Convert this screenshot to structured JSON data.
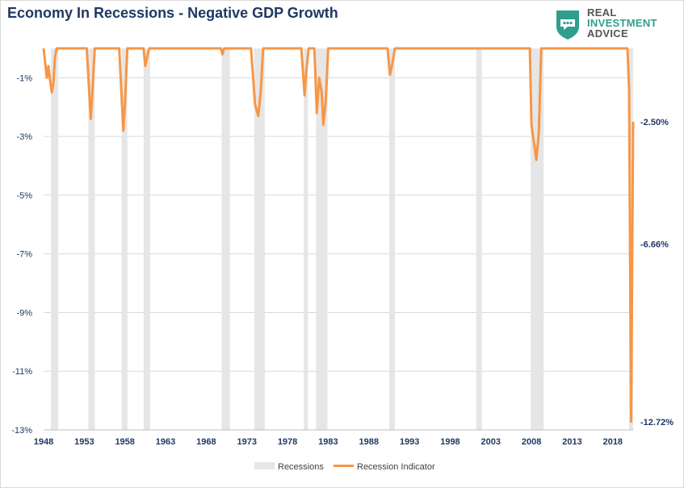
{
  "title": "Economy In Recessions - Negative GDP Growth",
  "logo": {
    "line1": "REAL",
    "line2": "INVESTMENT",
    "line3": "ADVICE",
    "accent": "#2e9e8f"
  },
  "colors": {
    "recession_band": "#e6e6e6",
    "line": "#f79646",
    "gridline": "#d9d9d9",
    "axis_text": "#1f3864"
  },
  "chart_data": {
    "type": "line",
    "title": "Economy In Recessions - Negative GDP Growth",
    "xlabel": "",
    "ylabel": "",
    "x_ticks": [
      "1948",
      "1953",
      "1958",
      "1963",
      "1968",
      "1973",
      "1978",
      "1983",
      "1988",
      "1993",
      "1998",
      "2003",
      "2008",
      "2013",
      "2018"
    ],
    "y_ticks": [
      "-1%",
      "-3%",
      "-5%",
      "-7%",
      "-9%",
      "-11%",
      "-13%"
    ],
    "y_tick_values": [
      -1,
      -3,
      -5,
      -7,
      -9,
      -11,
      -13
    ],
    "xlim": [
      1948,
      2020.5
    ],
    "ylim": [
      -13,
      0
    ],
    "grid": "horizontal",
    "legend_position": "bottom",
    "series": [
      {
        "name": "Recessions",
        "kind": "band",
        "periods": [
          [
            1948.9,
            1949.8
          ],
          [
            1953.5,
            1954.3
          ],
          [
            1957.6,
            1958.3
          ],
          [
            1960.3,
            1961.1
          ],
          [
            1969.9,
            1970.9
          ],
          [
            1973.9,
            1975.2
          ],
          [
            1980.0,
            1980.5
          ],
          [
            1981.5,
            1982.9
          ],
          [
            1990.5,
            1991.2
          ],
          [
            2001.2,
            2001.9
          ],
          [
            2007.9,
            2009.5
          ],
          [
            2020.0,
            2020.5
          ]
        ]
      },
      {
        "name": "Recession Indicator",
        "kind": "line",
        "x": [
          1948,
          1948.4,
          1948.6,
          1948.8,
          1949.0,
          1949.2,
          1949.4,
          1949.6,
          1953.3,
          1953.8,
          1954.0,
          1954.3,
          1957.3,
          1957.8,
          1958.0,
          1958.3,
          1960.3,
          1960.5,
          1960.8,
          1961.0,
          1969.8,
          1970.0,
          1970.2,
          1973.5,
          1974.0,
          1974.4,
          1974.7,
          1975.0,
          1979.7,
          1980.1,
          1980.3,
          1980.6,
          1981.3,
          1981.6,
          1981.9,
          1982.2,
          1982.4,
          1982.7,
          1983.0,
          1990.3,
          1990.6,
          1990.9,
          1991.2,
          2007.8,
          2008.0,
          2008.6,
          2008.9,
          2009.2,
          2019.8,
          2020.0,
          2020.25,
          2020.5
        ],
        "y": [
          0,
          -1.0,
          -0.6,
          -1.1,
          -1.5,
          -1.2,
          -0.3,
          0,
          0,
          -2.4,
          -1.5,
          0,
          0,
          -2.8,
          -1.9,
          0,
          0,
          -0.6,
          -0.2,
          0,
          0,
          -0.2,
          0,
          0,
          -1.9,
          -2.3,
          -1.5,
          0,
          0,
          -1.6,
          -0.8,
          0,
          0,
          -2.2,
          -1.0,
          -1.5,
          -2.6,
          -1.8,
          0,
          0,
          -0.9,
          -0.5,
          0,
          0,
          -2.6,
          -3.8,
          -2.9,
          0,
          0,
          -1.4,
          -12.72,
          -2.5
        ]
      }
    ],
    "annotations": [
      {
        "text": "-2.50%",
        "y": -2.5
      },
      {
        "text": "-6.66%",
        "y": -6.66
      },
      {
        "text": "-12.72%",
        "y": -12.72
      }
    ]
  }
}
